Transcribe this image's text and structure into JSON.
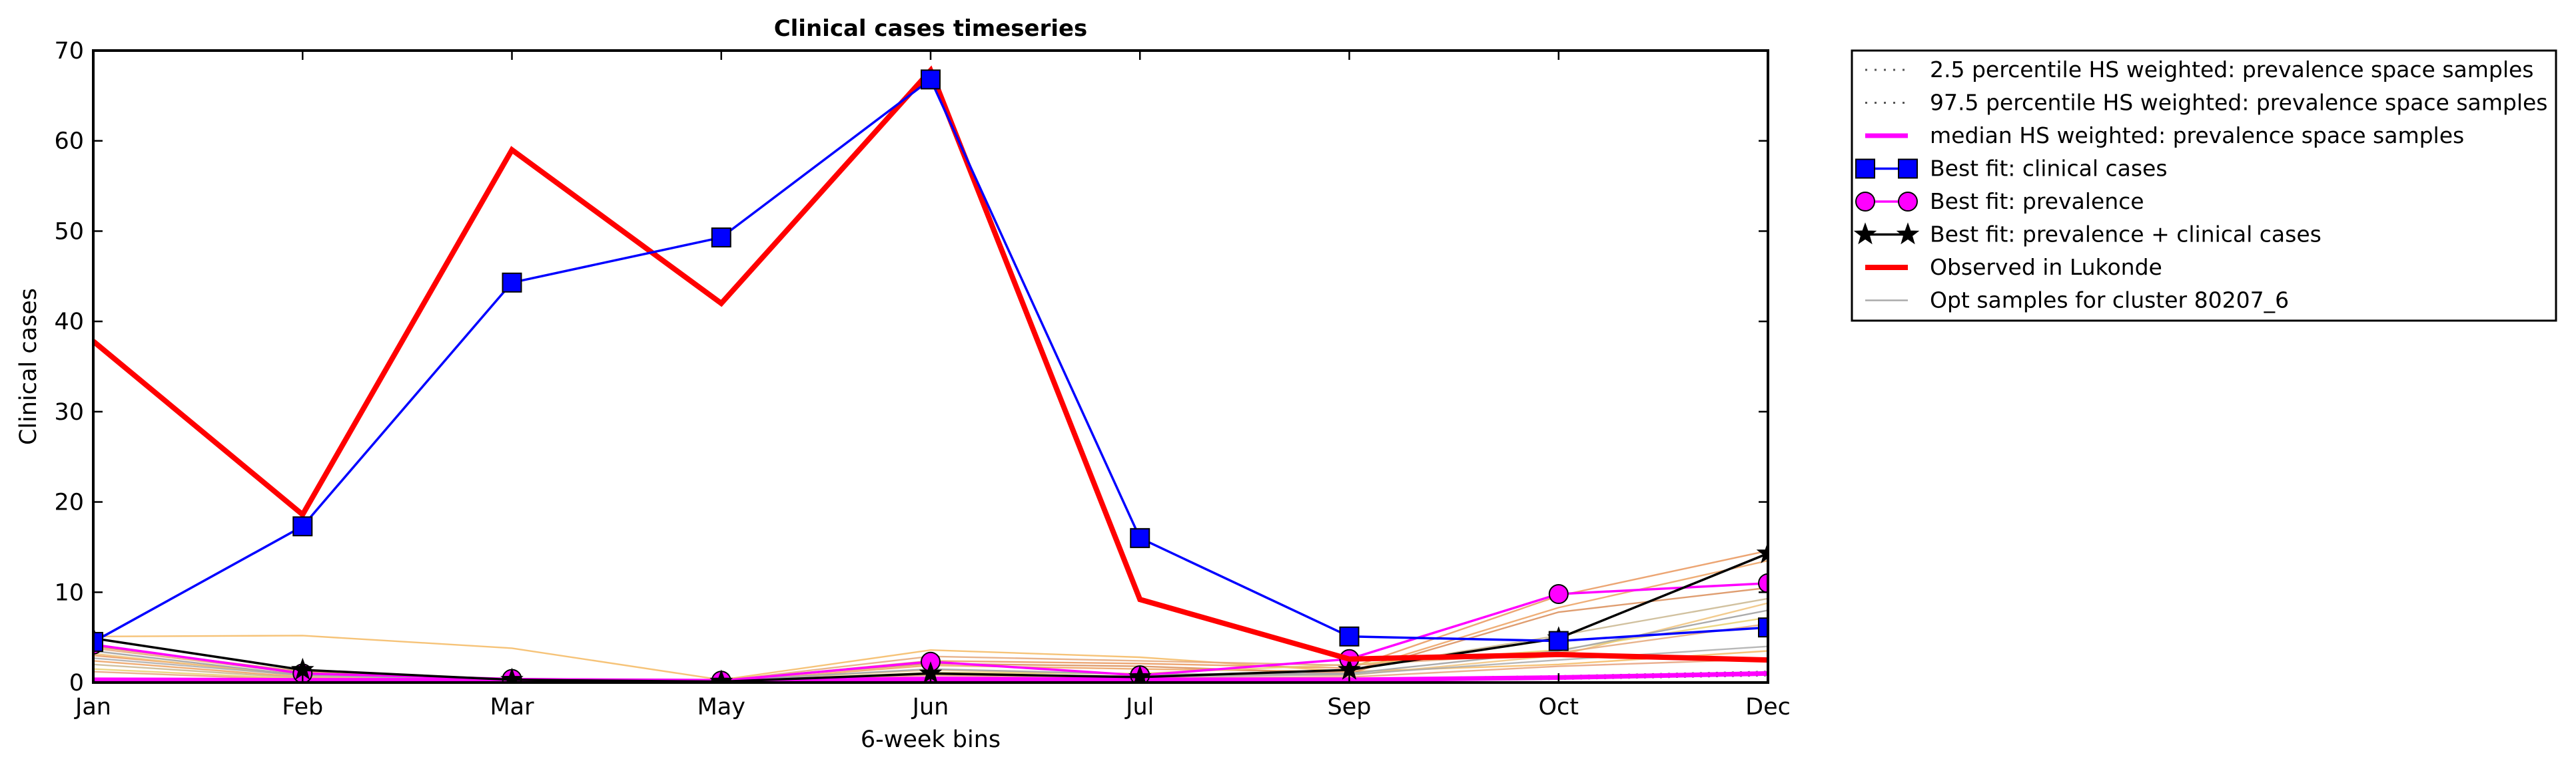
{
  "chart_data": {
    "type": "line",
    "title": "Clinical cases timeseries",
    "xlabel": "6-week bins",
    "ylabel": "Clinical cases",
    "categories": [
      "Jan",
      "Feb",
      "Mar",
      "May",
      "Jun",
      "Jul",
      "Sep",
      "Oct",
      "Dec"
    ],
    "ylim": [
      0,
      70
    ],
    "yticks": [
      0,
      10,
      20,
      30,
      40,
      50,
      60,
      70
    ],
    "grid": false,
    "legend_position": "outside-right",
    "series": [
      {
        "name": "2.5 percentile HS weighted: prevalence space samples",
        "style": "dotted",
        "color": "#555555",
        "values": [
          0.2,
          0.2,
          0.2,
          0.1,
          0.3,
          0.2,
          0.2,
          0.4,
          0.8
        ]
      },
      {
        "name": "97.5 percentile HS weighted: prevalence space samples",
        "style": "dotted",
        "color": "#555555",
        "values": [
          0.4,
          0.3,
          0.3,
          0.2,
          0.5,
          0.4,
          0.4,
          0.7,
          1.2
        ]
      },
      {
        "name": "median HS weighted: prevalence space samples",
        "style": "solid-thick",
        "color": "#ff00ff",
        "values": [
          0.3,
          0.25,
          0.25,
          0.15,
          0.4,
          0.3,
          0.3,
          0.55,
          1.0
        ]
      },
      {
        "name": "Best fit: clinical cases",
        "style": "square-marker",
        "color": "#0000ff",
        "values": [
          4.5,
          17.3,
          44.3,
          49.3,
          66.8,
          16.0,
          5.1,
          4.6,
          6.1
        ]
      },
      {
        "name": "Best fit: prevalence",
        "style": "circle-marker",
        "color": "#ff00ff",
        "values": [
          4.2,
          1.0,
          0.4,
          0.2,
          2.3,
          0.8,
          2.6,
          9.8,
          11.0
        ]
      },
      {
        "name": "Best fit: prevalence + clinical cases",
        "style": "star-marker",
        "color": "#000000",
        "values": [
          4.9,
          1.4,
          0.3,
          0.1,
          1.0,
          0.6,
          1.4,
          4.9,
          14.3
        ]
      },
      {
        "name": "Observed in Lukonde",
        "style": "solid-thick",
        "color": "#ff0000",
        "values": [
          37.8,
          18.6,
          59.0,
          42.0,
          67.8,
          9.2,
          2.6,
          3.1,
          2.5
        ]
      },
      {
        "name": "Opt samples for cluster 80207_6",
        "style": "solid-thin",
        "color": "#aaaaaa",
        "values": [
          3.5,
          0.8,
          0.3,
          0.2,
          1.5,
          0.9,
          1.0,
          3.5,
          8.0
        ]
      }
    ],
    "samples": [
      {
        "color": "#f4b860",
        "values": [
          5.1,
          5.2,
          3.8,
          0.3,
          3.6,
          2.8,
          1.2,
          2.0,
          3.5
        ]
      },
      {
        "color": "#e9955a",
        "values": [
          3.0,
          0.9,
          0.3,
          0.2,
          2.4,
          2.1,
          1.6,
          9.6,
          14.6
        ]
      },
      {
        "color": "#eca05f",
        "values": [
          2.4,
          0.6,
          0.2,
          0.1,
          1.9,
          1.5,
          1.2,
          8.3,
          13.5
        ]
      },
      {
        "color": "#d98c57",
        "values": [
          4.0,
          1.2,
          0.4,
          0.3,
          2.1,
          1.8,
          1.0,
          7.8,
          10.5
        ]
      },
      {
        "color": "#f0c27a",
        "values": [
          3.2,
          0.7,
          0.3,
          0.2,
          1.4,
          0.9,
          0.8,
          3.0,
          8.8
        ]
      },
      {
        "color": "#c9b68e",
        "values": [
          2.0,
          0.5,
          0.2,
          0.1,
          0.9,
          0.7,
          1.4,
          5.2,
          9.3
        ]
      },
      {
        "color": "#e8d070",
        "values": [
          1.5,
          0.4,
          0.2,
          0.1,
          1.1,
          1.0,
          2.0,
          3.6,
          7.2
        ]
      },
      {
        "color": "#e4a678",
        "values": [
          3.8,
          1.0,
          0.3,
          0.2,
          2.9,
          2.4,
          1.9,
          3.3,
          6.5
        ]
      },
      {
        "color": "#aaaaaa",
        "values": [
          2.7,
          0.8,
          0.3,
          0.2,
          1.0,
          0.6,
          0.9,
          2.5,
          4.0
        ]
      },
      {
        "color": "#e6a07a",
        "values": [
          1.2,
          0.3,
          0.1,
          0.1,
          0.8,
          0.5,
          0.6,
          1.8,
          2.6
        ]
      }
    ]
  }
}
